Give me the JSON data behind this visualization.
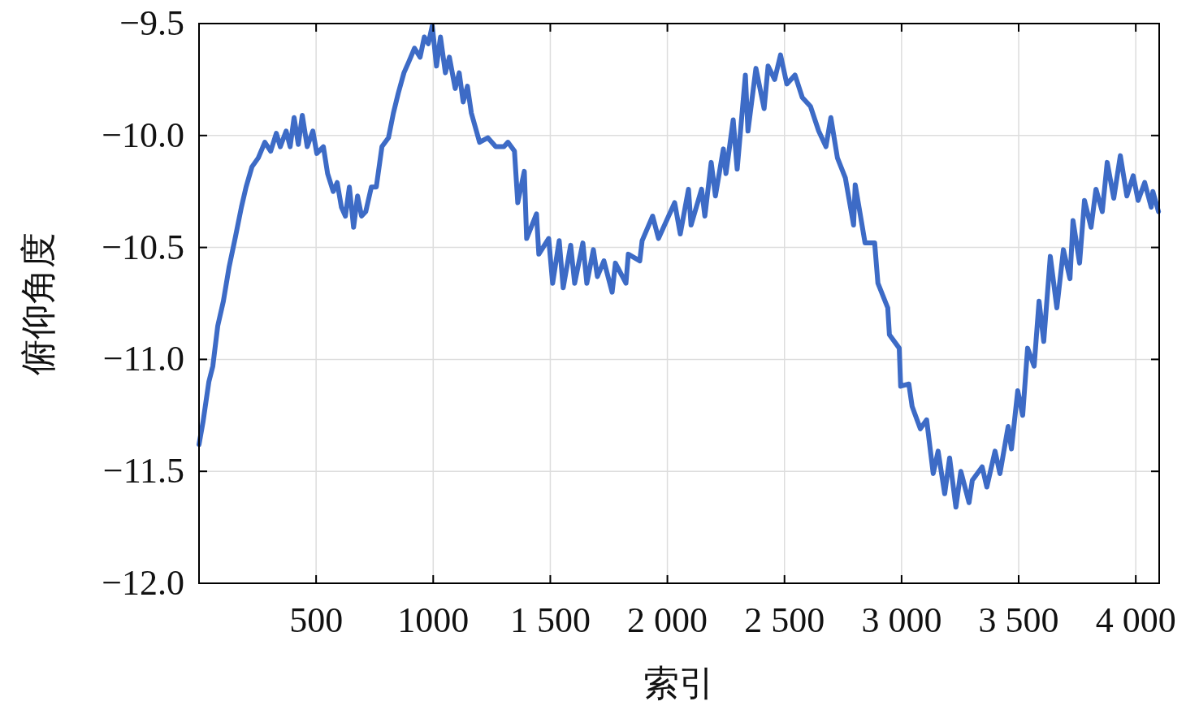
{
  "chart_data": {
    "type": "line",
    "xlabel": "索引",
    "ylabel": "俯仰角度",
    "xlim": [
      0,
      4100
    ],
    "ylim": [
      -12.0,
      -9.5
    ],
    "xticks": [
      500,
      1000,
      {
        "value": 1500,
        "label": "1 500"
      },
      {
        "value": 2000,
        "label": "2 000"
      },
      {
        "value": 2500,
        "label": "2 500"
      },
      {
        "value": 3000,
        "label": "3 000"
      },
      {
        "value": 3500,
        "label": "3 500"
      },
      {
        "value": 4000,
        "label": "4 000"
      }
    ],
    "yticks": [
      {
        "value": -12.0,
        "label": "−12.0"
      },
      {
        "value": -11.5,
        "label": "−11.5"
      },
      {
        "value": -11.0,
        "label": "−11.0"
      },
      {
        "value": -10.5,
        "label": "−10.5"
      },
      {
        "value": -10.0,
        "label": "−10.0"
      },
      {
        "value": -9.5,
        "label": "−9.5"
      }
    ],
    "grid": true,
    "marker": "none",
    "line_style": "solid",
    "series": [
      {
        "color": "#3d6bc6",
        "x": [
          0,
          17,
          42,
          59,
          80,
          104,
          128,
          156,
          181,
          201,
          226,
          253,
          281,
          306,
          330,
          347,
          372,
          389,
          406,
          424,
          441,
          462,
          486,
          503,
          531,
          549,
          573,
          590,
          608,
          625,
          642,
          660,
          677,
          694,
          712,
          736,
          757,
          781,
          809,
          830,
          851,
          875,
          896,
          920,
          944,
          962,
          979,
          996,
          1014,
          1031,
          1052,
          1069,
          1094,
          1111,
          1128,
          1146,
          1163,
          1198,
          1233,
          1267,
          1302,
          1319,
          1347,
          1361,
          1389,
          1399,
          1441,
          1451,
          1493,
          1510,
          1538,
          1555,
          1587,
          1604,
          1639,
          1656,
          1684,
          1701,
          1729,
          1764,
          1778,
          1823,
          1833,
          1882,
          1892,
          1937,
          1962,
          2031,
          2055,
          2090,
          2101,
          2146,
          2160,
          2187,
          2205,
          2239,
          2250,
          2281,
          2298,
          2333,
          2344,
          2378,
          2413,
          2430,
          2458,
          2483,
          2510,
          2545,
          2576,
          2611,
          2646,
          2677,
          2698,
          2726,
          2760,
          2795,
          2802,
          2844,
          2885,
          2899,
          2941,
          2948,
          2990,
          2996,
          3031,
          3045,
          3080,
          3107,
          3135,
          3156,
          3184,
          3205,
          3232,
          3253,
          3288,
          3302,
          3344,
          3364,
          3399,
          3420,
          3455,
          3469,
          3496,
          3517,
          3538,
          3566,
          3587,
          3607,
          3635,
          3663,
          3691,
          3719,
          3732,
          3760,
          3781,
          3809,
          3830,
          3857,
          3878,
          3906,
          3934,
          3962,
          3989,
          4010,
          4038,
          4066,
          4073,
          4097
        ],
        "values": [
          -11.38,
          -11.28,
          -11.1,
          -11.03,
          -10.85,
          -10.74,
          -10.59,
          -10.45,
          -10.32,
          -10.23,
          -10.14,
          -10.1,
          -10.03,
          -10.07,
          -9.99,
          -10.05,
          -9.98,
          -10.05,
          -9.92,
          -10.04,
          -9.91,
          -10.05,
          -9.98,
          -10.08,
          -10.05,
          -10.17,
          -10.25,
          -10.21,
          -10.32,
          -10.36,
          -10.23,
          -10.41,
          -10.27,
          -10.36,
          -10.34,
          -10.23,
          -10.23,
          -10.05,
          -10.01,
          -9.9,
          -9.81,
          -9.72,
          -9.67,
          -9.61,
          -9.65,
          -9.56,
          -9.59,
          -9.51,
          -9.69,
          -9.56,
          -9.72,
          -9.65,
          -9.79,
          -9.72,
          -9.85,
          -9.78,
          -9.9,
          -10.03,
          -10.01,
          -10.05,
          -10.05,
          -10.03,
          -10.07,
          -10.3,
          -10.16,
          -10.46,
          -10.35,
          -10.53,
          -10.46,
          -10.66,
          -10.47,
          -10.68,
          -10.49,
          -10.66,
          -10.48,
          -10.66,
          -10.51,
          -10.63,
          -10.56,
          -10.7,
          -10.57,
          -10.66,
          -10.53,
          -10.56,
          -10.47,
          -10.36,
          -10.46,
          -10.3,
          -10.44,
          -10.24,
          -10.4,
          -10.24,
          -10.36,
          -10.12,
          -10.27,
          -10.06,
          -10.17,
          -9.93,
          -10.15,
          -9.73,
          -9.98,
          -9.7,
          -9.88,
          -9.69,
          -9.75,
          -9.64,
          -9.77,
          -9.73,
          -9.83,
          -9.87,
          -9.98,
          -10.05,
          -9.92,
          -10.1,
          -10.19,
          -10.4,
          -10.22,
          -10.48,
          -10.48,
          -10.66,
          -10.77,
          -10.89,
          -10.95,
          -11.12,
          -11.11,
          -11.21,
          -11.31,
          -11.27,
          -11.51,
          -11.41,
          -11.6,
          -11.44,
          -11.66,
          -11.5,
          -11.64,
          -11.54,
          -11.48,
          -11.57,
          -11.41,
          -11.51,
          -11.3,
          -11.4,
          -11.14,
          -11.25,
          -10.95,
          -11.03,
          -10.74,
          -10.92,
          -10.54,
          -10.77,
          -10.51,
          -10.64,
          -10.38,
          -10.57,
          -10.29,
          -10.41,
          -10.24,
          -10.34,
          -10.12,
          -10.28,
          -10.09,
          -10.27,
          -10.18,
          -10.29,
          -10.21,
          -10.32,
          -10.25,
          -10.34
        ]
      }
    ]
  }
}
